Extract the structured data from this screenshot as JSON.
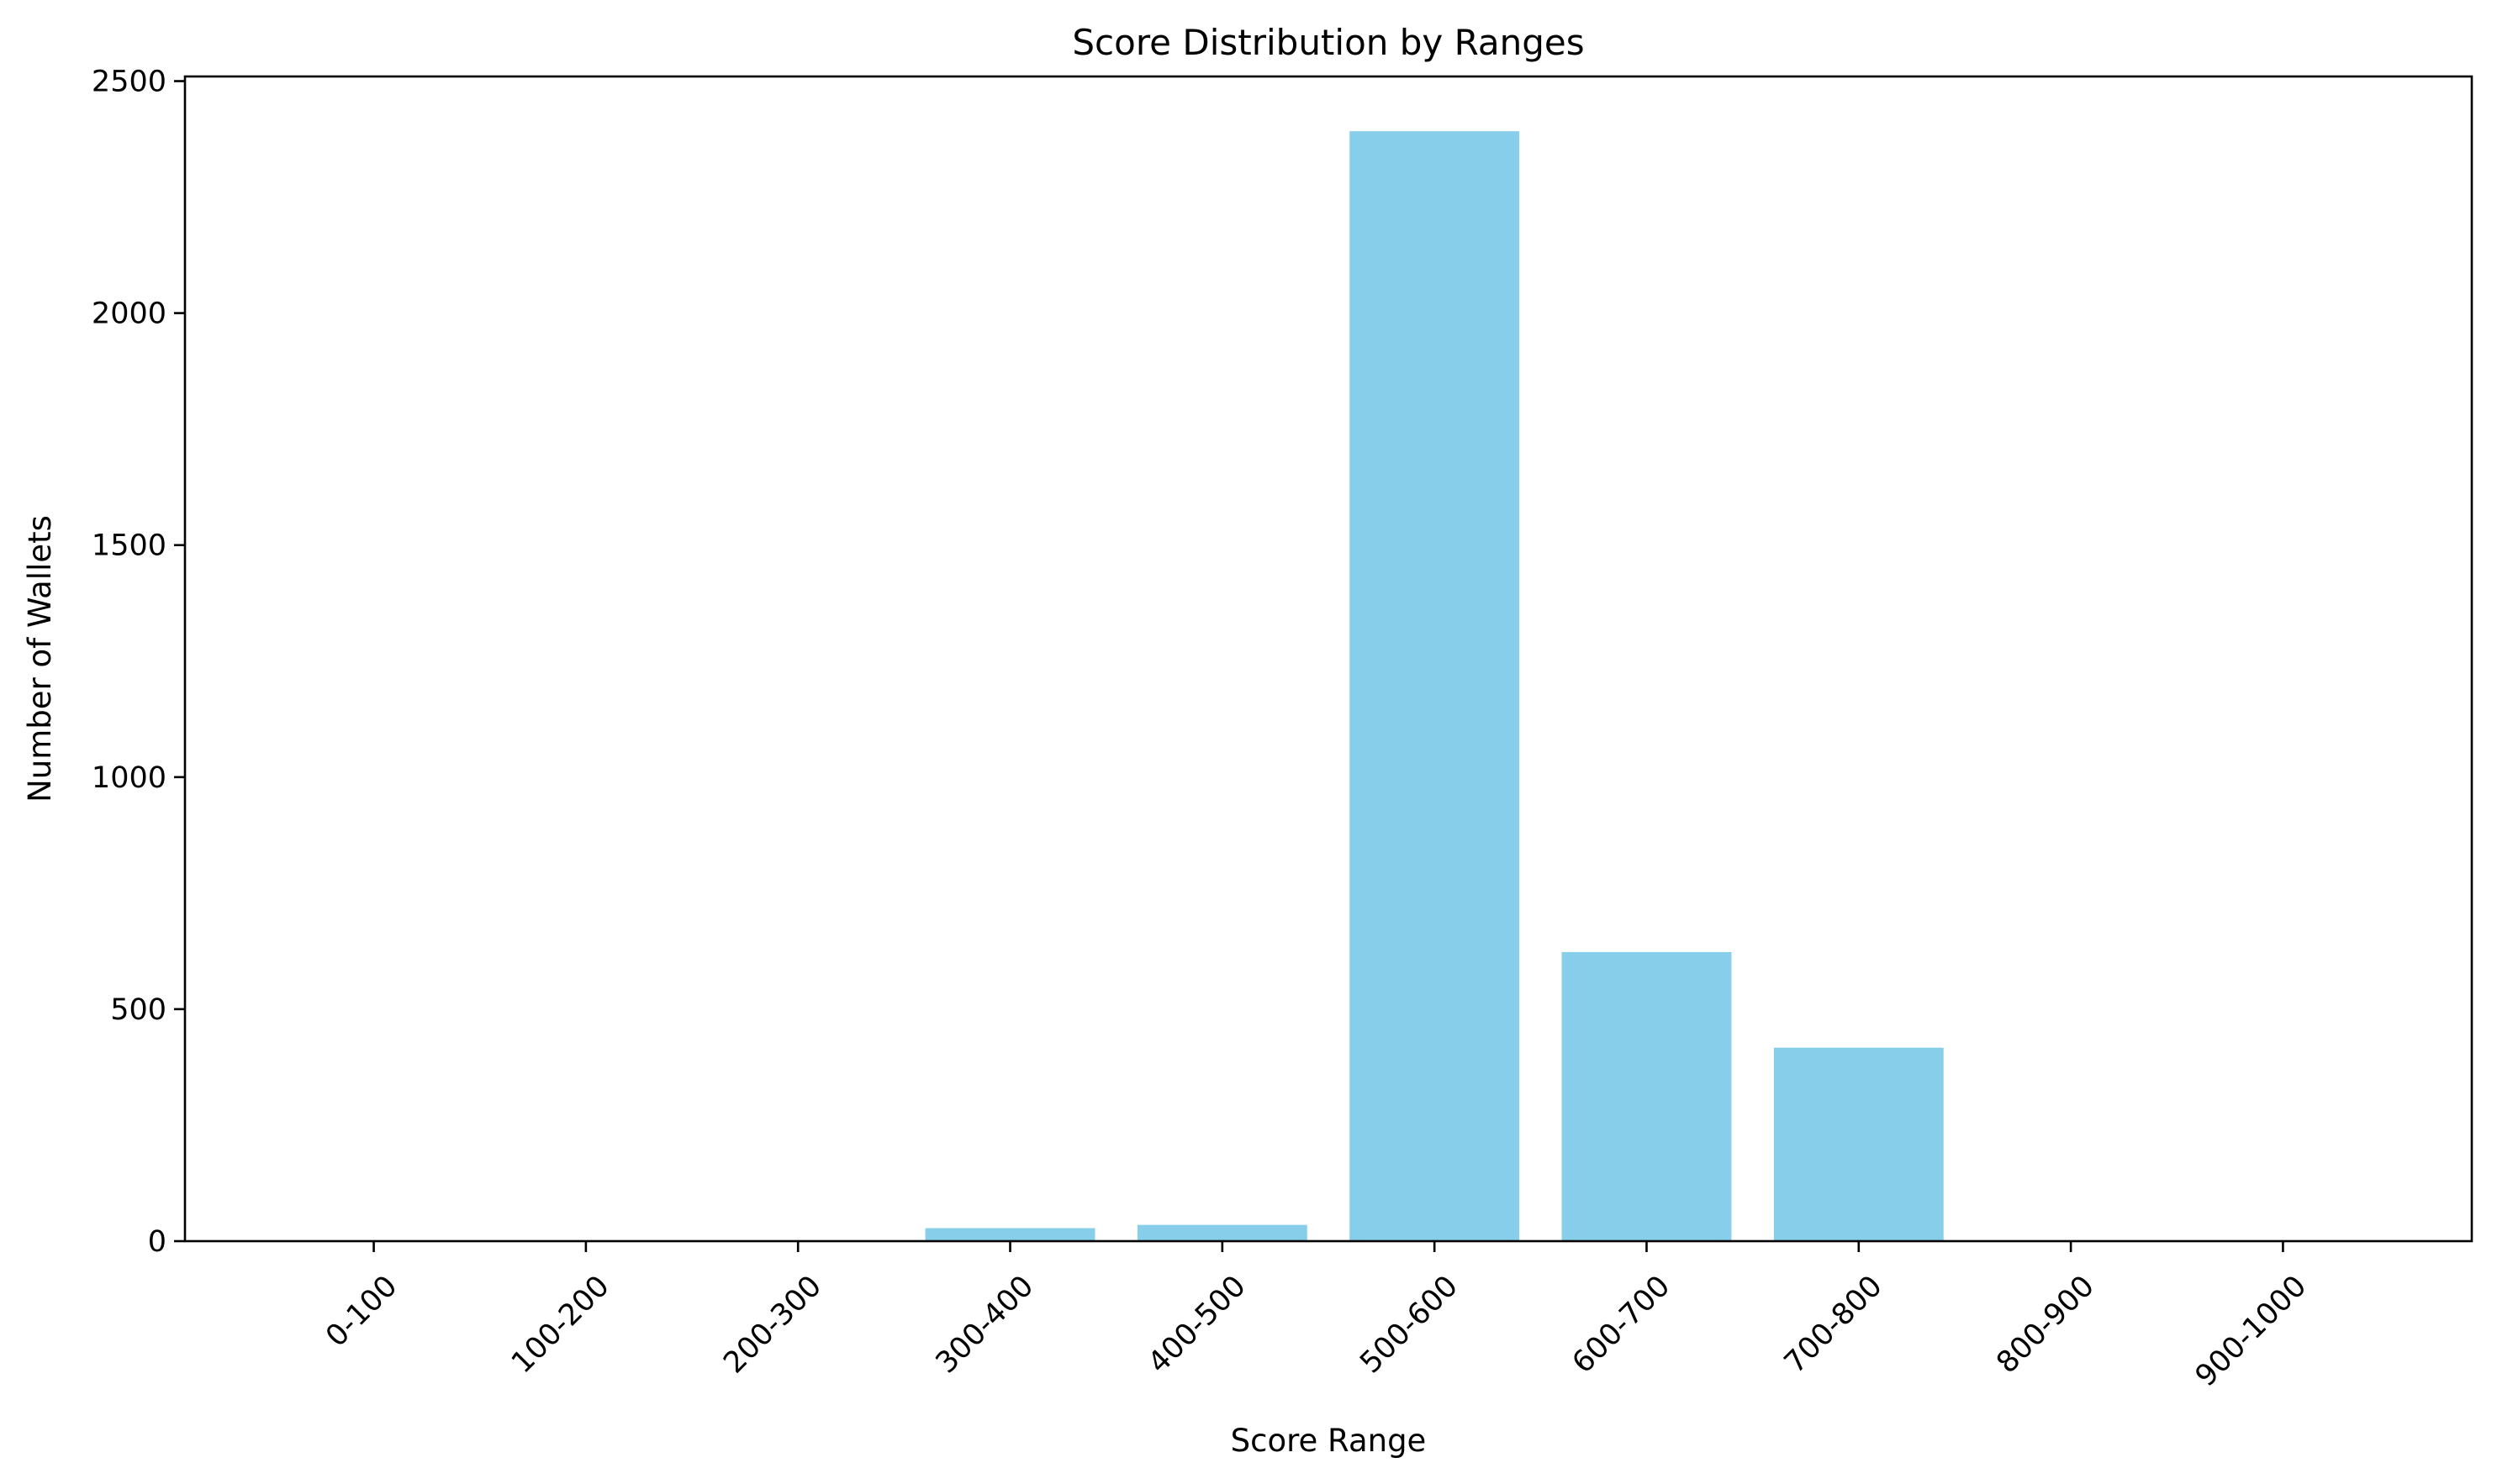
{
  "chart_data": {
    "type": "bar",
    "title": "Score Distribution by Ranges",
    "xlabel": "Score Range",
    "ylabel": "Number of Wallets",
    "categories": [
      "0-100",
      "100-200",
      "200-300",
      "300-400",
      "400-500",
      "500-600",
      "600-700",
      "700-800",
      "800-900",
      "900-1000"
    ],
    "values": [
      0,
      0,
      0,
      28,
      35,
      2392,
      623,
      417,
      0,
      0
    ],
    "ylim": [
      0,
      2510
    ],
    "yticks": [
      "0",
      "500",
      "1000",
      "1500",
      "2000",
      "2500"
    ],
    "bar_color": "#87CEEB",
    "grid": false,
    "legend": "none"
  }
}
